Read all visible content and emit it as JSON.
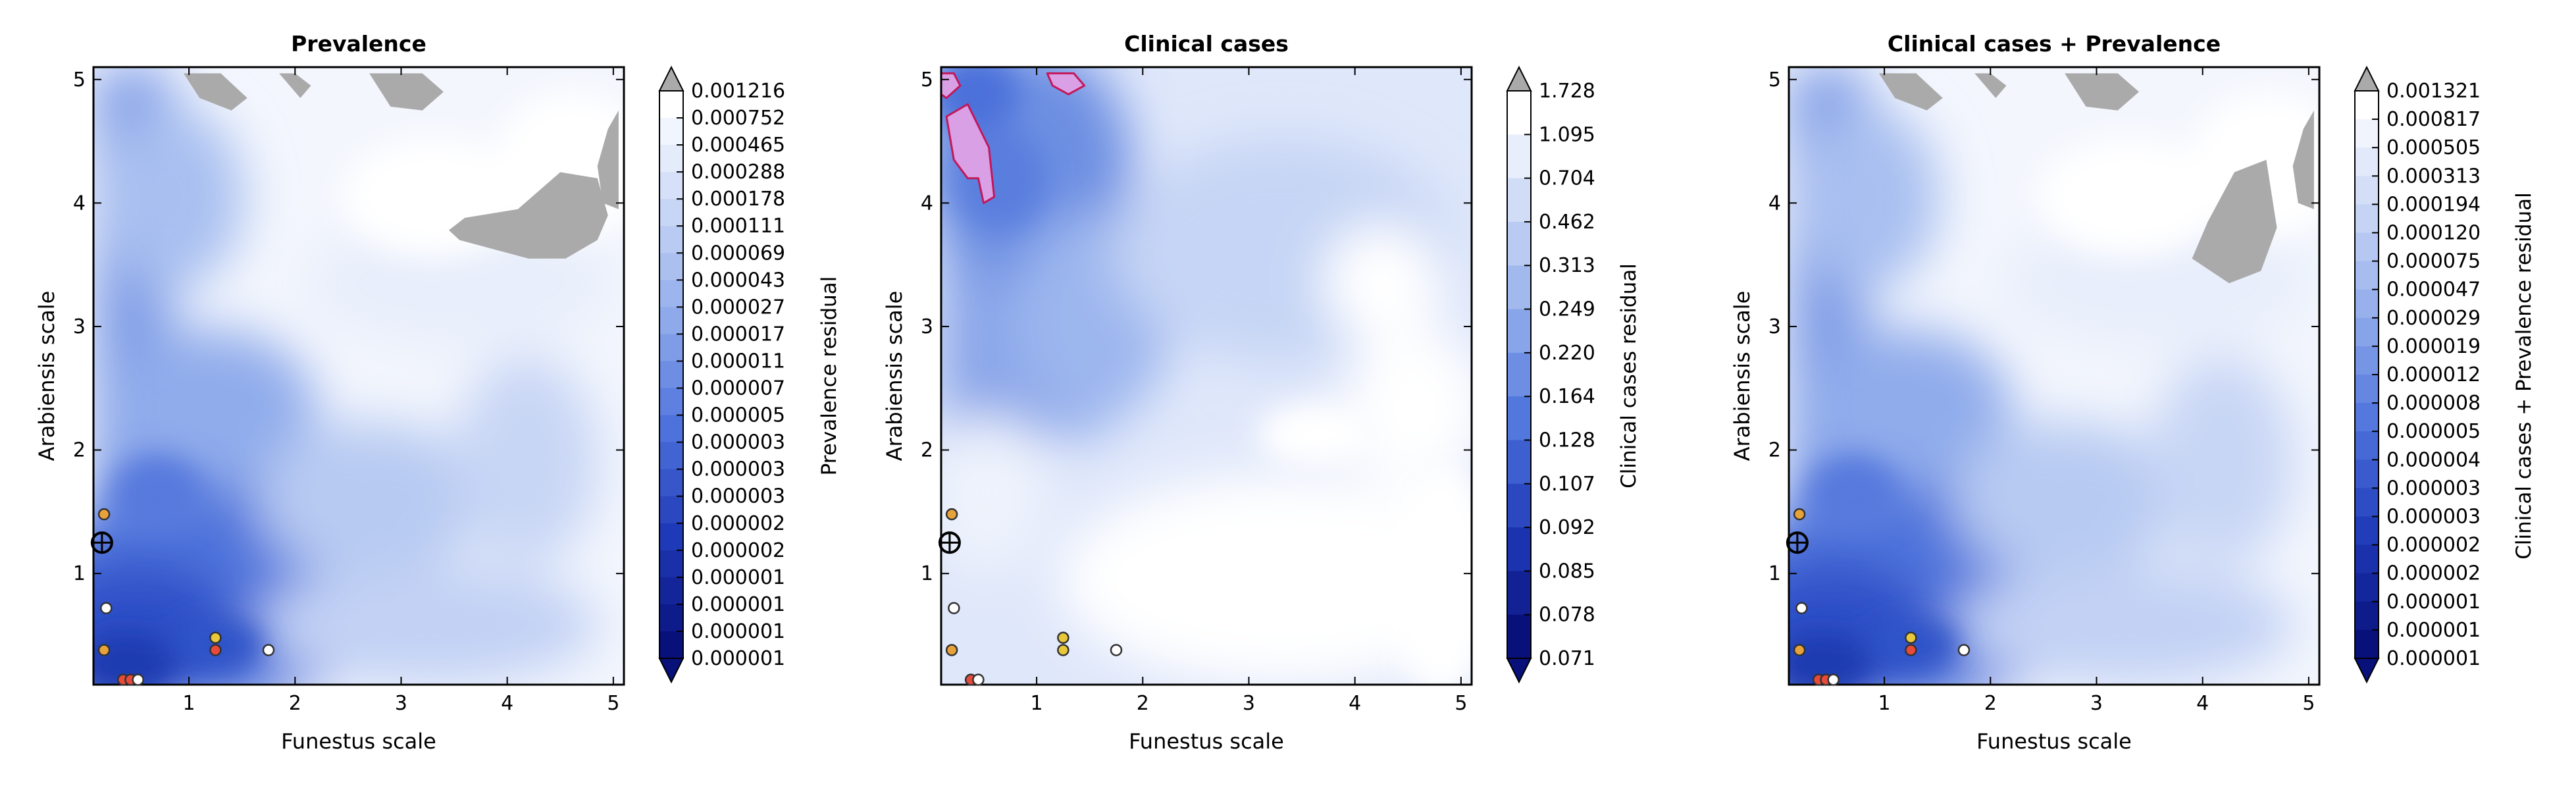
{
  "chart_data": [
    {
      "type": "heatmap",
      "title": "Prevalence",
      "xlabel": "Funestus scale",
      "ylabel": "Arabiensis scale",
      "xlim": [
        0.1,
        5.1
      ],
      "ylim": [
        0.1,
        5.1
      ],
      "xticks": [
        "1",
        "2",
        "3",
        "4",
        "5"
      ],
      "yticks": [
        "1",
        "2",
        "3",
        "4",
        "5"
      ],
      "colorbar_label": "Prevalence residual",
      "colorbar_ticks": [
        "0.001216",
        "0.000752",
        "0.000465",
        "0.000288",
        "0.000178",
        "0.000111",
        "0.000069",
        "0.000043",
        "0.000027",
        "0.000017",
        "0.000011",
        "0.000007",
        "0.000005",
        "0.000003",
        "0.000003",
        "0.000003",
        "0.000002",
        "0.000002",
        "0.000001",
        "0.000001",
        "0.000001",
        "0.000001"
      ],
      "over_regions": [
        {
          "x": [
            1.85,
            2.05,
            2.15,
            2.0,
            1.85
          ],
          "y": [
            5.05,
            4.85,
            4.95,
            5.05,
            5.05
          ]
        },
        {
          "x": [
            0.95,
            1.1,
            1.4,
            1.55,
            1.3,
            1.05
          ],
          "y": [
            5.05,
            4.85,
            4.75,
            4.85,
            5.05,
            5.05
          ]
        },
        {
          "x": [
            2.7,
            2.9,
            3.2,
            3.4,
            3.2,
            2.8
          ],
          "y": [
            5.05,
            4.78,
            4.75,
            4.9,
            5.05,
            5.05
          ]
        },
        {
          "x": [
            4.95,
            4.85,
            4.9,
            5.05,
            5.05
          ],
          "y": [
            4.6,
            4.3,
            4.0,
            3.95,
            4.75
          ]
        },
        {
          "x": [
            3.55,
            4.2,
            4.55,
            4.85,
            4.95,
            4.85,
            4.5,
            4.1,
            3.6,
            3.45
          ],
          "y": [
            3.7,
            3.55,
            3.55,
            3.7,
            3.9,
            4.2,
            4.25,
            3.95,
            3.88,
            3.78
          ]
        }
      ],
      "points": [
        {
          "x": 0.18,
          "y": 1.25,
          "color": "#000000"
        },
        {
          "x": 0.2,
          "y": 1.48,
          "color": "#e8a23a"
        },
        {
          "x": 0.22,
          "y": 0.72,
          "color": "#ffffff"
        },
        {
          "x": 0.2,
          "y": 0.38,
          "color": "#e8a23a"
        },
        {
          "x": 1.25,
          "y": 0.48,
          "color": "#e8c83a"
        },
        {
          "x": 1.25,
          "y": 0.38,
          "color": "#e84a3a"
        },
        {
          "x": 1.75,
          "y": 0.38,
          "color": "#ffffff"
        },
        {
          "x": 0.38,
          "y": 0.14,
          "color": "#e84a3a"
        },
        {
          "x": 0.45,
          "y": 0.14,
          "color": "#e84a3a"
        },
        {
          "x": 0.52,
          "y": 0.14,
          "color": "#ffffff"
        }
      ]
    },
    {
      "type": "heatmap",
      "title": "Clinical cases",
      "xlabel": "Funestus scale",
      "ylabel": "Arabiensis scale",
      "xlim": [
        0.1,
        5.1
      ],
      "ylim": [
        0.1,
        5.1
      ],
      "xticks": [
        "1",
        "2",
        "3",
        "4",
        "5"
      ],
      "yticks": [
        "1",
        "2",
        "3",
        "4",
        "5"
      ],
      "colorbar_label": "Clinical cases residual",
      "colorbar_ticks": [
        "1.728",
        "1.095",
        "0.704",
        "0.462",
        "0.313",
        "0.249",
        "0.220",
        "0.164",
        "0.128",
        "0.107",
        "0.092",
        "0.085",
        "0.078",
        "0.071"
      ],
      "high_regions": [
        {
          "x": [
            0.15,
            0.35,
            0.55,
            0.6,
            0.5,
            0.45,
            0.35,
            0.22,
            0.18
          ],
          "y": [
            4.7,
            4.8,
            4.45,
            4.05,
            4.0,
            4.2,
            4.2,
            4.35,
            4.55
          ]
        },
        {
          "x": [
            0.1,
            0.22,
            0.28,
            0.15,
            0.1
          ],
          "y": [
            5.05,
            5.05,
            4.95,
            4.85,
            4.88
          ]
        },
        {
          "x": [
            1.1,
            1.35,
            1.45,
            1.3,
            1.15
          ],
          "y": [
            5.05,
            5.05,
            4.95,
            4.88,
            4.95
          ]
        }
      ],
      "points": [
        {
          "x": 0.18,
          "y": 1.25,
          "color": "#000000"
        },
        {
          "x": 0.2,
          "y": 1.48,
          "color": "#e8a23a"
        },
        {
          "x": 0.22,
          "y": 0.72,
          "color": "#ffffff"
        },
        {
          "x": 0.2,
          "y": 0.38,
          "color": "#e8a23a"
        },
        {
          "x": 1.25,
          "y": 0.48,
          "color": "#e8c83a"
        },
        {
          "x": 1.25,
          "y": 0.38,
          "color": "#e8c83a"
        },
        {
          "x": 1.75,
          "y": 0.38,
          "color": "#ffffff"
        },
        {
          "x": 0.38,
          "y": 0.14,
          "color": "#e84a3a"
        },
        {
          "x": 0.45,
          "y": 0.14,
          "color": "#ffffff"
        }
      ]
    },
    {
      "type": "heatmap",
      "title": "Clinical cases + Prevalence",
      "xlabel": "Funestus scale",
      "ylabel": "Arabiensis scale",
      "xlim": [
        0.1,
        5.1
      ],
      "ylim": [
        0.1,
        5.1
      ],
      "xticks": [
        "1",
        "2",
        "3",
        "4",
        "5"
      ],
      "yticks": [
        "1",
        "2",
        "3",
        "4",
        "5"
      ],
      "colorbar_label": "Clinical cases + Prevalence residual",
      "colorbar_ticks": [
        "0.001321",
        "0.000817",
        "0.000505",
        "0.000313",
        "0.000194",
        "0.000120",
        "0.000075",
        "0.000047",
        "0.000029",
        "0.000019",
        "0.000012",
        "0.000008",
        "0.000005",
        "0.000004",
        "0.000003",
        "0.000003",
        "0.000002",
        "0.000002",
        "0.000001",
        "0.000001",
        "0.000001"
      ],
      "over_regions": [
        {
          "x": [
            1.85,
            2.05,
            2.15,
            2.0,
            1.85
          ],
          "y": [
            5.05,
            4.85,
            4.95,
            5.05,
            5.05
          ]
        },
        {
          "x": [
            0.95,
            1.1,
            1.4,
            1.55,
            1.3,
            1.05
          ],
          "y": [
            5.05,
            4.85,
            4.75,
            4.85,
            5.05,
            5.05
          ]
        },
        {
          "x": [
            2.7,
            2.9,
            3.2,
            3.4,
            3.2,
            2.8
          ],
          "y": [
            5.05,
            4.78,
            4.75,
            4.9,
            5.05,
            5.05
          ]
        },
        {
          "x": [
            4.95,
            4.85,
            4.9,
            5.05,
            5.05
          ],
          "y": [
            4.6,
            4.3,
            4.0,
            3.95,
            4.75
          ]
        },
        {
          "x": [
            3.9,
            4.25,
            4.55,
            4.7,
            4.6,
            4.3,
            4.05
          ],
          "y": [
            3.55,
            3.35,
            3.45,
            3.8,
            4.35,
            4.25,
            3.85
          ]
        }
      ],
      "points": [
        {
          "x": 0.18,
          "y": 1.25,
          "color": "#000000"
        },
        {
          "x": 0.2,
          "y": 1.48,
          "color": "#e8a23a"
        },
        {
          "x": 0.22,
          "y": 0.72,
          "color": "#ffffff"
        },
        {
          "x": 0.2,
          "y": 0.38,
          "color": "#e8a23a"
        },
        {
          "x": 1.25,
          "y": 0.48,
          "color": "#e8c83a"
        },
        {
          "x": 1.25,
          "y": 0.38,
          "color": "#e84a3a"
        },
        {
          "x": 1.75,
          "y": 0.38,
          "color": "#ffffff"
        },
        {
          "x": 0.38,
          "y": 0.14,
          "color": "#e84a3a"
        },
        {
          "x": 0.45,
          "y": 0.14,
          "color": "#e84a3a"
        },
        {
          "x": 0.52,
          "y": 0.14,
          "color": "#ffffff"
        }
      ]
    }
  ],
  "colors": {
    "cmap_low": "#08107a",
    "cmap_high": "#ffffff",
    "over": "#aaaaaa",
    "high_region": "#d9a0e6",
    "high_region_edge": "#c2185b"
  }
}
